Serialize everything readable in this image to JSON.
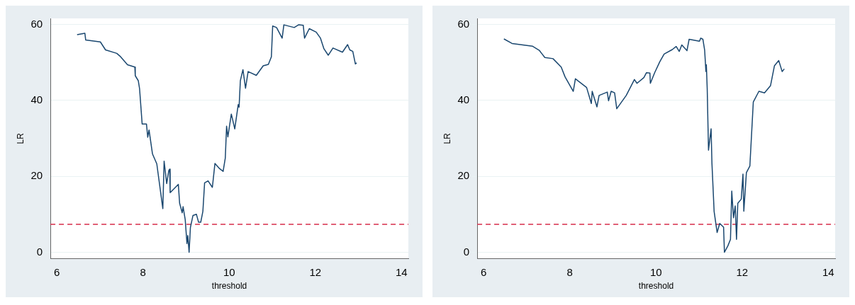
{
  "chart_data": [
    {
      "type": "line",
      "xlabel": "threshold",
      "ylabel": "LR",
      "xlim": [
        5.85,
        14.16
      ],
      "ylim": [
        -1.7,
        61.6
      ],
      "xticks": [
        6,
        8,
        10,
        12,
        14
      ],
      "yticks": [
        0,
        20,
        40,
        60
      ],
      "grid": "y",
      "marker": "none",
      "line_style": "solid",
      "x": [
        6.47,
        6.65,
        6.67,
        7.01,
        7.13,
        7.39,
        7.48,
        7.64,
        7.81,
        7.82,
        7.89,
        7.92,
        7.98,
        8.08,
        8.11,
        8.14,
        8.22,
        8.32,
        8.46,
        8.49,
        8.55,
        8.6,
        8.62,
        8.63,
        8.82,
        8.85,
        8.91,
        8.93,
        8.98,
        9.02,
        9.04,
        9.07,
        9.1,
        9.16,
        9.24,
        9.29,
        9.34,
        9.39,
        9.43,
        9.51,
        9.61,
        9.67,
        9.78,
        9.86,
        9.91,
        9.94,
        9.97,
        10.05,
        10.13,
        10.21,
        10.23,
        10.26,
        10.32,
        10.38,
        10.44,
        10.63,
        10.79,
        10.91,
        10.98,
        11.01,
        11.1,
        11.23,
        11.27,
        11.51,
        11.61,
        11.72,
        11.75,
        11.86,
        12.02,
        12.12,
        12.2,
        12.3,
        12.41,
        12.63,
        12.75,
        12.8,
        12.87,
        12.93,
        12.96
      ],
      "series": [
        {
          "color": "#1a476f",
          "values": [
            57.3,
            57.7,
            55.9,
            55.4,
            53.3,
            52.4,
            51.5,
            49.4,
            48.8,
            46.5,
            45.2,
            43.1,
            33.8,
            33.8,
            30.3,
            32.2,
            25.9,
            23.3,
            11.5,
            24.0,
            18.1,
            21.6,
            21.9,
            15.7,
            17.9,
            12.9,
            10.4,
            12.0,
            8.6,
            2.3,
            4.4,
            0.0,
            6.5,
            9.7,
            10.0,
            7.9,
            7.9,
            10.8,
            18.3,
            18.8,
            17.1,
            23.4,
            22.0,
            21.3,
            24.8,
            33.2,
            30.4,
            36.4,
            32.5,
            38.9,
            38.2,
            45.2,
            48.1,
            43.2,
            47.6,
            46.6,
            49.1,
            49.5,
            51.5,
            59.6,
            59.2,
            56.4,
            59.9,
            59.2,
            59.9,
            59.8,
            56.4,
            58.9,
            58.0,
            56.4,
            53.6,
            51.9,
            53.8,
            52.7,
            54.7,
            53.3,
            52.9,
            49.6,
            49.9
          ]
        }
      ],
      "ref_lines": [
        {
          "axis": "y",
          "value": 7.35,
          "color": "#d62d4a",
          "line_style": "dashed"
        }
      ]
    },
    {
      "type": "line",
      "xlabel": "threshold",
      "ylabel": "LR",
      "xlim": [
        5.85,
        14.16
      ],
      "ylim": [
        -1.7,
        61.6
      ],
      "xticks": [
        6,
        8,
        10,
        12,
        14
      ],
      "yticks": [
        0,
        20,
        40,
        60
      ],
      "grid": "y",
      "marker": "none",
      "line_style": "solid",
      "x": [
        6.47,
        6.66,
        7.13,
        7.29,
        7.42,
        7.61,
        7.8,
        7.89,
        8.08,
        8.13,
        8.39,
        8.5,
        8.52,
        8.63,
        8.68,
        8.87,
        8.9,
        8.96,
        9.04,
        9.09,
        9.31,
        9.5,
        9.56,
        9.72,
        9.78,
        9.86,
        9.87,
        9.97,
        10.09,
        10.19,
        10.38,
        10.47,
        10.54,
        10.6,
        10.72,
        10.77,
        11.01,
        11.04,
        11.09,
        11.13,
        11.16,
        11.17,
        11.19,
        11.22,
        11.28,
        11.3,
        11.35,
        11.42,
        11.48,
        11.57,
        11.59,
        11.67,
        11.73,
        11.76,
        11.8,
        11.84,
        11.87,
        11.9,
        11.98,
        12.02,
        12.04,
        12.1,
        12.18,
        12.26,
        12.39,
        12.52,
        12.66,
        12.75,
        12.85,
        12.93,
        12.98
      ],
      "series": [
        {
          "color": "#1a476f",
          "values": [
            56.2,
            55.0,
            54.3,
            53.2,
            51.3,
            51.0,
            48.8,
            46.2,
            42.4,
            45.7,
            43.4,
            39.2,
            42.4,
            38.3,
            41.3,
            42.2,
            39.9,
            42.4,
            42.0,
            37.8,
            41.3,
            45.5,
            44.5,
            46.0,
            47.3,
            47.2,
            44.5,
            47.3,
            50.2,
            52.2,
            53.4,
            54.2,
            52.9,
            54.6,
            53.1,
            56.1,
            55.6,
            56.4,
            56.1,
            53.3,
            47.6,
            49.4,
            43.1,
            26.9,
            32.5,
            23.4,
            10.8,
            5.2,
            7.6,
            6.6,
            0.0,
            1.7,
            3.4,
            16.1,
            9.1,
            12.2,
            3.4,
            12.9,
            14.0,
            20.6,
            10.8,
            21.0,
            22.7,
            39.6,
            42.4,
            42.0,
            43.9,
            49.1,
            50.5,
            47.6,
            48.3
          ]
        }
      ],
      "ref_lines": [
        {
          "axis": "y",
          "value": 7.35,
          "color": "#d62d4a",
          "line_style": "dashed"
        }
      ]
    }
  ]
}
